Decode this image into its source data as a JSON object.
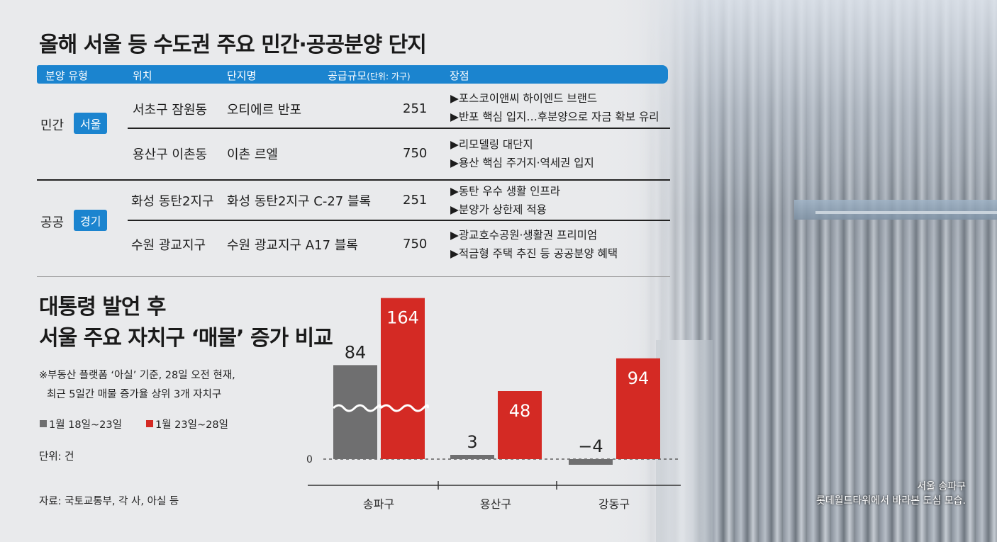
{
  "table": {
    "title": "올해 서울 등 수도권 주요 민간·공공분양 단지",
    "headers": {
      "type": "분양 유형",
      "location": "위치",
      "complex": "단지명",
      "supply": "공급규모",
      "supply_unit": "(단위: 가구)",
      "merits": "장점"
    },
    "groups": [
      {
        "type": "민간",
        "region": "서울"
      },
      {
        "type": "공공",
        "region": "경기"
      }
    ],
    "rows": [
      {
        "location": "서초구 잠원동",
        "complex": "오티에르 반포",
        "supply": "251",
        "merits": [
          "▶포스코이앤씨 하이엔드 브랜드",
          "▶반포 핵심 입지…후분양으로 자금 확보 유리"
        ]
      },
      {
        "location": "용산구 이촌동",
        "complex": "이촌 르엘",
        "supply": "750",
        "merits": [
          "▶리모델링 대단지",
          "▶용산 핵심 주거지·역세권 입지"
        ]
      },
      {
        "location": "화성 동탄2지구",
        "complex": "화성 동탄2지구 C-27 블록",
        "supply": "251",
        "merits": [
          "▶동탄 우수 생활 인프라",
          "▶분양가 상한제 적용"
        ]
      },
      {
        "location": "수원 광교지구",
        "complex": "수원 광교지구 A17 블록",
        "supply": "750",
        "merits": [
          "▶광교호수공원·생활권 프리미엄",
          "▶적금형 주택 추진 등 공공분양 혜택"
        ]
      }
    ]
  },
  "chart_section": {
    "title_line1": "대통령 발언 후",
    "title_line2": "서울 주요 자치구 ‘매물’ 증가 비교",
    "note_line1": "※부동산 플랫폼 ‘아실’ 기준, 28일 오전 현재,",
    "note_line2": "최근 5일간 매물 증가율 상위 3개 자치구",
    "unit": "단위: 건",
    "source": "자료: 국토교통부, 각 사, 아실 등"
  },
  "colors": {
    "accent": "#1b84cf",
    "gray": "#6f6f70",
    "red": "#d42a24"
  },
  "chart_data": {
    "type": "bar",
    "categories": [
      "송파구",
      "용산구",
      "강동구"
    ],
    "series": [
      {
        "name": "1월 18일~23일",
        "values": [
          84,
          3,
          -4
        ],
        "color": "#6f6f70"
      },
      {
        "name": "1월 23일~28일",
        "values": [
          164,
          48,
          94
        ],
        "color": "#d42a24"
      }
    ],
    "value_labels": [
      [
        "84",
        "3",
        "−4"
      ],
      [
        "164",
        "48",
        "94"
      ]
    ],
    "axis_zero_label": "0",
    "broken_axis": true,
    "legend_position": "left"
  },
  "photo_caption": {
    "line1": "서울 송파구",
    "line2": "롯데월드타워에서 바라본 도심 모습."
  }
}
